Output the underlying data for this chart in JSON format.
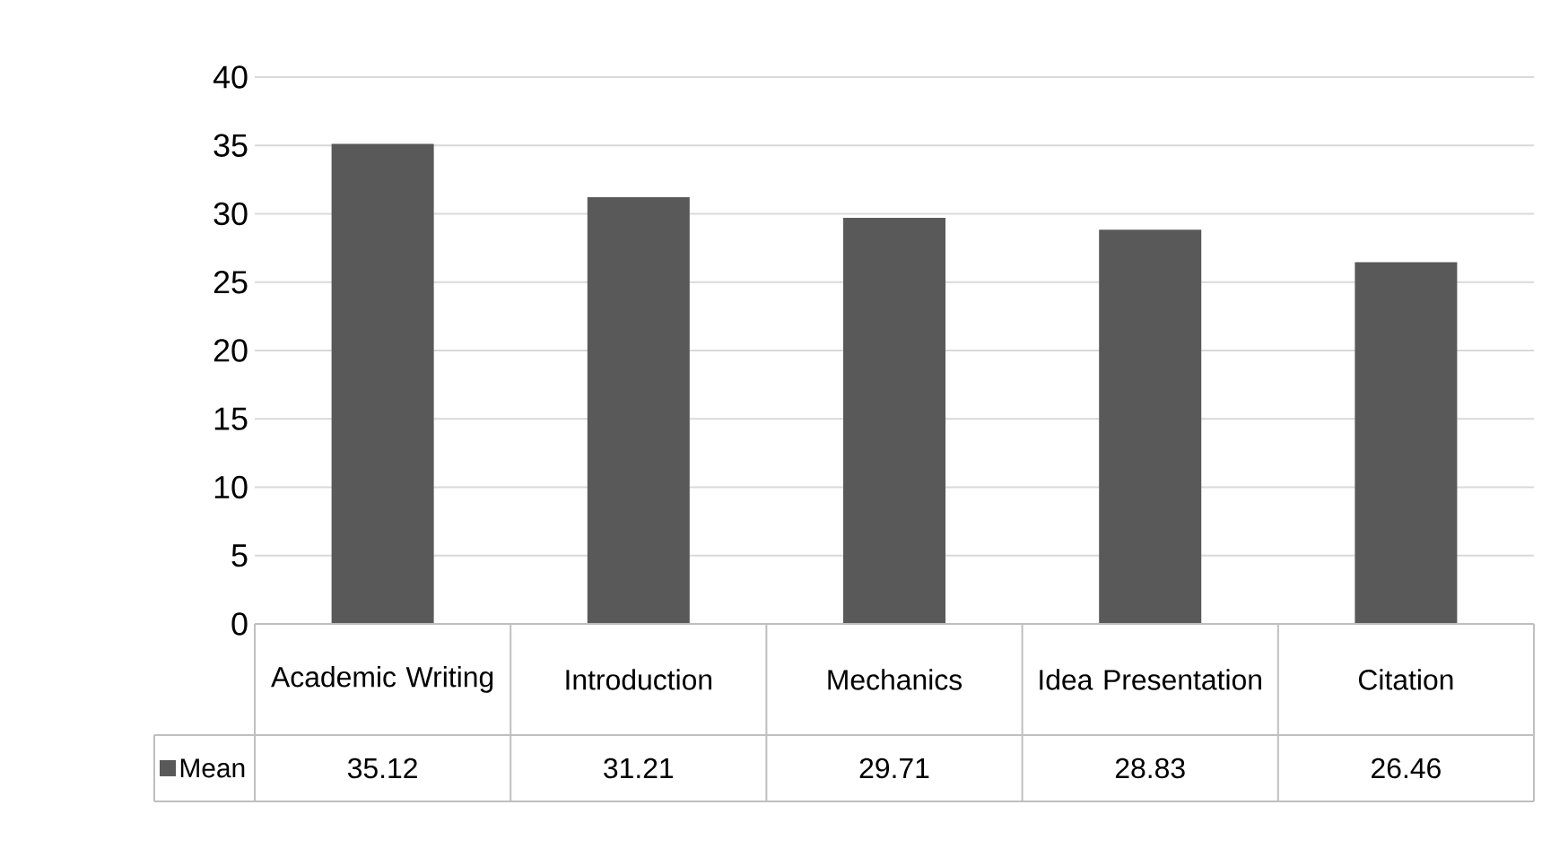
{
  "chart_data": {
    "type": "bar",
    "categories": [
      "Academic Writing",
      "Introduction",
      "Mechanics",
      "Idea Presentation",
      "Citation"
    ],
    "series": [
      {
        "name": "Mean",
        "color": "#595959",
        "values": [
          35.12,
          31.21,
          29.71,
          28.83,
          26.46
        ]
      }
    ],
    "ylim": [
      0,
      40
    ],
    "yticks": [
      0,
      5,
      10,
      15,
      20,
      25,
      30,
      35,
      40
    ],
    "grid": "y",
    "data_labels": true,
    "legend": "bottom"
  }
}
